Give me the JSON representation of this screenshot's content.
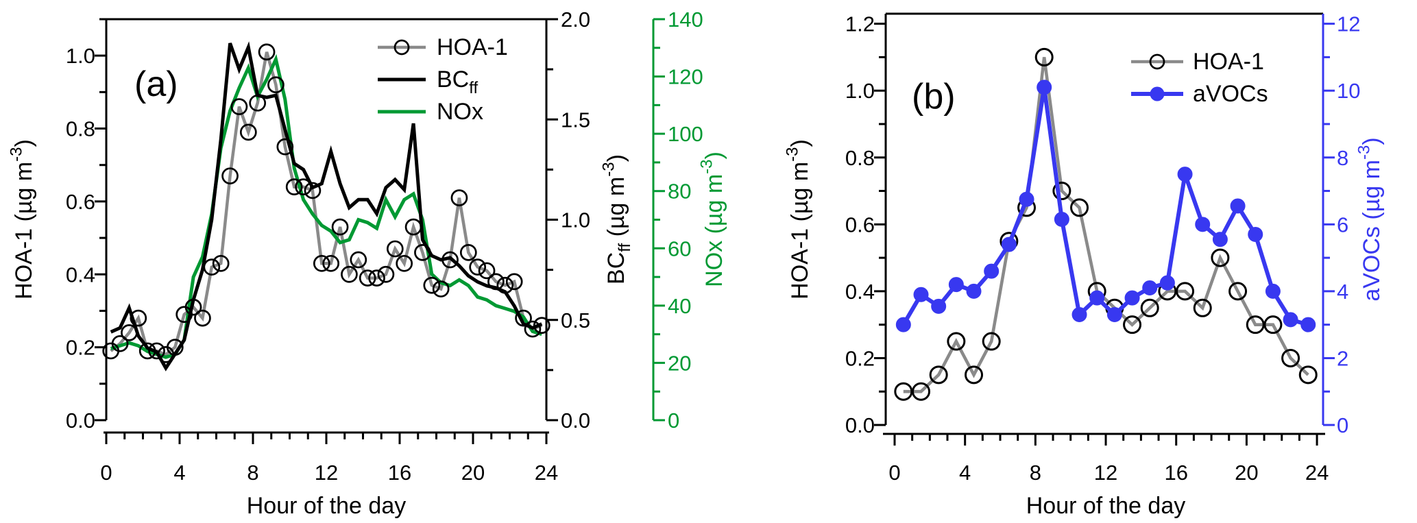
{
  "figure": {
    "description": "Diurnal cycle line charts, two panels",
    "background_color": "#ffffff",
    "x_axis_title": "Hour of the day"
  },
  "chart_data": [
    {
      "id": "a",
      "type": "line",
      "panel_label": "(a)",
      "x_label": "Hour of the day",
      "x_range": [
        0,
        24
      ],
      "x_major_step": 4,
      "x_minor_step": 1,
      "x_tick_labels": [
        "0",
        "4",
        "8",
        "12",
        "16",
        "20",
        "24"
      ],
      "x": [
        0.25,
        0.75,
        1.25,
        1.75,
        2.25,
        2.75,
        3.25,
        3.75,
        4.25,
        4.75,
        5.25,
        5.75,
        6.25,
        6.75,
        7.25,
        7.75,
        8.25,
        8.75,
        9.25,
        9.75,
        10.25,
        10.75,
        11.25,
        11.75,
        12.25,
        12.75,
        13.25,
        13.75,
        14.25,
        14.75,
        15.25,
        15.75,
        16.25,
        16.75,
        17.25,
        17.75,
        18.25,
        18.75,
        19.25,
        19.75,
        20.25,
        20.75,
        21.25,
        21.75,
        22.25,
        22.75,
        23.25,
        23.75
      ],
      "y_axes": [
        {
          "key": "HOA",
          "side": "left",
          "color": "#000000",
          "range": [
            0,
            1.1
          ],
          "major_step": 0.2,
          "minor_step": 0.1,
          "tick_labels": [
            "0.0",
            "0.2",
            "0.4",
            "0.6",
            "0.8",
            "1.0"
          ],
          "title_segments": [
            {
              "t": "HOA-1 (µg m"
            },
            {
              "t": "-3",
              "sup": true
            },
            {
              "t": ")"
            }
          ]
        },
        {
          "key": "BC",
          "side": "right",
          "color": "#000000",
          "range": [
            0,
            2.0
          ],
          "major_step": 0.5,
          "minor_step": 0.25,
          "tick_labels": [
            "0.0",
            "0.5",
            "1.0",
            "1.5",
            "2.0"
          ],
          "title_segments": [
            {
              "t": "BC"
            },
            {
              "t": "ff",
              "sub": true
            },
            {
              "t": " (µg m"
            },
            {
              "t": "-3",
              "sup": true
            },
            {
              "t": ")"
            }
          ]
        },
        {
          "key": "NOx",
          "side": "right2",
          "color": "#009933",
          "range": [
            0,
            140
          ],
          "major_step": 20,
          "minor_step": 10,
          "tick_labels": [
            "0",
            "20",
            "40",
            "60",
            "80",
            "100",
            "120",
            "140"
          ],
          "title_segments": [
            {
              "t": "NOx (µg m"
            },
            {
              "t": "-3",
              "sup": true
            },
            {
              "t": ")"
            }
          ]
        }
      ],
      "series": [
        {
          "name": "HOA-1",
          "axis": "HOA",
          "color": "#8A8A8A",
          "line_width": 4.5,
          "marker": "open-circle",
          "values": [
            0.19,
            0.21,
            0.24,
            0.28,
            0.19,
            0.19,
            0.18,
            0.2,
            0.29,
            0.31,
            0.28,
            0.42,
            0.43,
            0.67,
            0.86,
            0.79,
            0.87,
            1.01,
            0.92,
            0.75,
            0.64,
            0.64,
            0.63,
            0.43,
            0.43,
            0.53,
            0.4,
            0.44,
            0.39,
            0.39,
            0.4,
            0.47,
            0.43,
            0.53,
            0.46,
            0.37,
            0.36,
            0.44,
            0.61,
            0.46,
            0.42,
            0.41,
            0.38,
            0.37,
            0.38,
            0.28,
            0.25,
            0.26
          ]
        },
        {
          "name": "NOx",
          "axis": "NOx",
          "color": "#009933",
          "line_width": 5,
          "marker": "none",
          "values": [
            25,
            26,
            27,
            26,
            24,
            23,
            22,
            23,
            28,
            50,
            57,
            72,
            95,
            108,
            116,
            123,
            113,
            119,
            126,
            112,
            88,
            77,
            72,
            68,
            66,
            62,
            63,
            70,
            69,
            67,
            77,
            71,
            77,
            79,
            70,
            51,
            48,
            47,
            49,
            47,
            43,
            42,
            40,
            39,
            38,
            36,
            31,
            30
          ]
        },
        {
          "name": "BCff",
          "axis": "BC",
          "color": "#000000",
          "line_width": 5,
          "marker": "none",
          "values": [
            0.44,
            0.46,
            0.56,
            0.42,
            0.36,
            0.34,
            0.26,
            0.33,
            0.4,
            0.6,
            0.75,
            1.0,
            1.4,
            1.88,
            1.75,
            1.86,
            1.62,
            1.61,
            1.62,
            1.45,
            1.28,
            1.25,
            1.16,
            1.18,
            1.34,
            1.18,
            1.06,
            1.1,
            1.1,
            1.03,
            1.16,
            1.2,
            1.15,
            1.48,
            0.9,
            0.82,
            0.8,
            0.81,
            0.77,
            0.72,
            0.69,
            0.67,
            0.66,
            0.64,
            0.57,
            0.48,
            0.46,
            0.48
          ]
        }
      ],
      "markers_on_top": true,
      "legend": [
        {
          "label_segments": [
            {
              "t": "HOA-1"
            }
          ],
          "color": "#8A8A8A",
          "marker": "open-circle"
        },
        {
          "label_segments": [
            {
              "t": "BC"
            },
            {
              "t": "ff",
              "sub": true
            }
          ],
          "color": "#000000",
          "marker": "line"
        },
        {
          "label_segments": [
            {
              "t": "NOx"
            }
          ],
          "color": "#009933",
          "marker": "line"
        }
      ]
    },
    {
      "id": "b",
      "type": "line",
      "panel_label": "(b)",
      "x_label": "Hour of the day",
      "x_range": [
        0,
        24
      ],
      "x_major_step": 4,
      "x_minor_step": 1,
      "x_tick_labels": [
        "0",
        "4",
        "8",
        "12",
        "16",
        "20",
        "24"
      ],
      "x": [
        0.5,
        1.5,
        2.5,
        3.5,
        4.5,
        5.5,
        6.5,
        7.5,
        8.5,
        9.5,
        10.5,
        11.5,
        12.5,
        13.5,
        14.5,
        15.5,
        16.5,
        17.5,
        18.5,
        19.5,
        20.5,
        21.5,
        22.5,
        23.5
      ],
      "y_axes": [
        {
          "key": "HOA",
          "side": "left",
          "color": "#000000",
          "range": [
            0,
            1.23
          ],
          "major_step": 0.2,
          "minor_step": 0.1,
          "tick_labels": [
            "0.0",
            "0.2",
            "0.4",
            "0.6",
            "0.8",
            "1.0",
            "1.2"
          ],
          "title_segments": [
            {
              "t": "HOA-1 (µg m"
            },
            {
              "t": "-3",
              "sup": true
            },
            {
              "t": ")"
            }
          ]
        },
        {
          "key": "aVOC",
          "side": "right",
          "color": "#3838F0",
          "range": [
            0,
            12.3
          ],
          "major_step": 2,
          "minor_step": 1,
          "tick_labels": [
            "0",
            "2",
            "4",
            "6",
            "8",
            "10",
            "12"
          ],
          "title_segments": [
            {
              "t": "aVOCs (µg m"
            },
            {
              "t": "-3",
              "sup": true
            },
            {
              "t": ")"
            }
          ]
        }
      ],
      "series": [
        {
          "name": "HOA-1",
          "axis": "HOA",
          "color": "#8A8A8A",
          "line_width": 4.6,
          "marker": "open-circle",
          "values": [
            0.1,
            0.1,
            0.15,
            0.25,
            0.15,
            0.25,
            0.55,
            0.65,
            1.1,
            0.7,
            0.65,
            0.4,
            0.35,
            0.3,
            0.35,
            0.4,
            0.4,
            0.35,
            0.5,
            0.4,
            0.3,
            0.3,
            0.2,
            0.15
          ]
        },
        {
          "name": "aVOCs",
          "axis": "aVOC",
          "color": "#3838F0",
          "line_width": 6,
          "marker": "filled-circle",
          "values": [
            3.0,
            3.9,
            3.55,
            4.2,
            4.0,
            4.6,
            5.4,
            6.75,
            10.1,
            6.15,
            3.3,
            3.8,
            3.3,
            3.8,
            4.1,
            4.25,
            7.5,
            6.0,
            5.55,
            6.55,
            5.7,
            4.0,
            3.15,
            3.0
          ]
        }
      ],
      "markers_on_top": false,
      "legend": [
        {
          "label_segments": [
            {
              "t": "HOA-1"
            }
          ],
          "color": "#8A8A8A",
          "marker": "open-circle"
        },
        {
          "label_segments": [
            {
              "t": "aVOCs"
            }
          ],
          "color": "#3838F0",
          "marker": "filled-circle"
        }
      ]
    }
  ]
}
